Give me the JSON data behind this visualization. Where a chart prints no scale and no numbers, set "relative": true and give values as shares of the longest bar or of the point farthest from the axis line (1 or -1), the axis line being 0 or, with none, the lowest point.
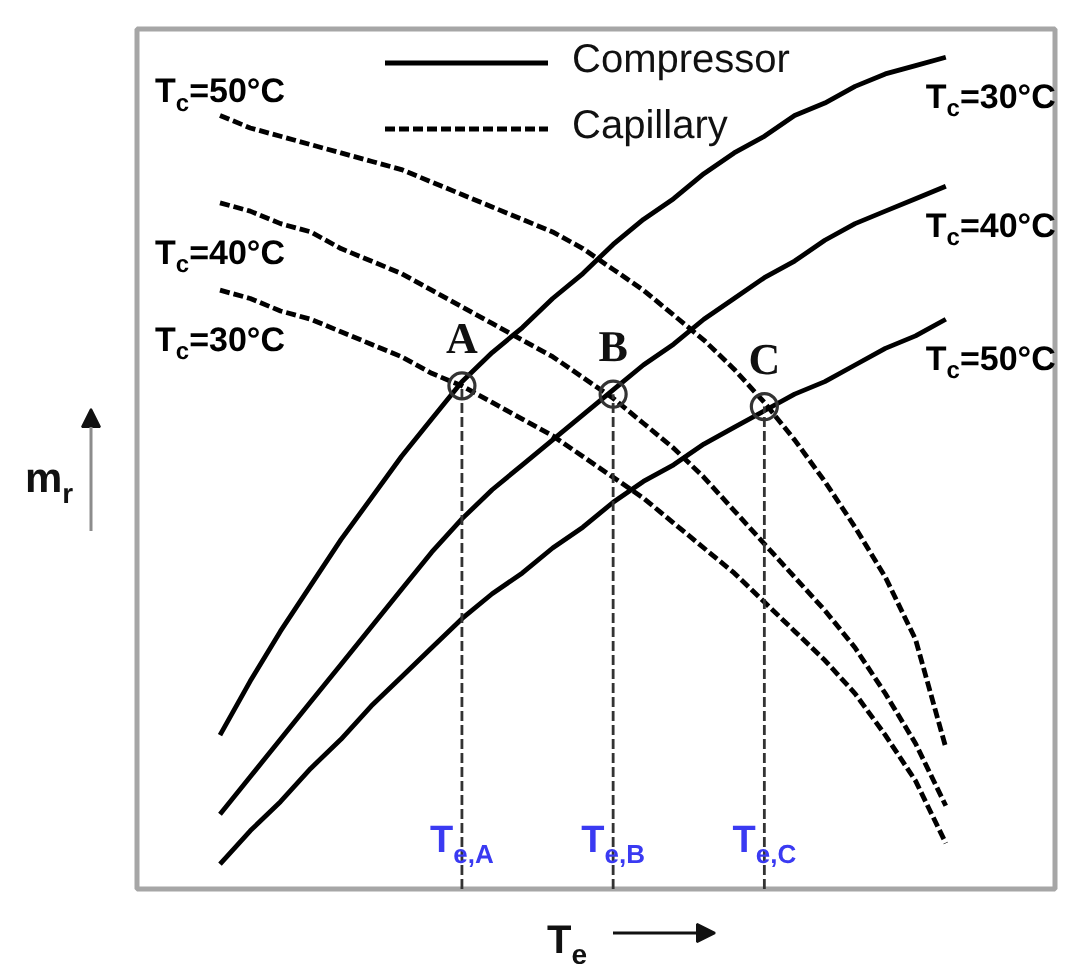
{
  "chart_data": {
    "type": "line",
    "relative": true,
    "xlabel": "T$_{e}$",
    "ylabel": "m$_{r}$",
    "legend": "top",
    "categories": [
      null,
      null,
      null,
      null,
      null,
      null,
      null,
      null,
      "T$_{e,A}$",
      null,
      null,
      null,
      null,
      "T$_{e,B}$",
      null,
      null,
      null,
      null,
      "T$_{e,C}$",
      null,
      null,
      null,
      null,
      null,
      null
    ],
    "series": [
      {
        "name": "T$_{c}$=30°C",
        "color": "#000000",
        "line_style": "solid",
        "values": [
          0.185,
          0.25,
          0.31,
          0.365,
          0.42,
          0.47,
          0.52,
          0.565,
          0.61,
          0.645,
          0.675,
          0.71,
          0.74,
          0.775,
          0.805,
          0.83,
          0.86,
          0.885,
          0.905,
          0.93,
          0.945,
          0.965,
          0.98,
          0.99,
          1.0
        ]
      },
      {
        "name": "T$_{c}$=40°C",
        "color": "#000000",
        "line_style": "solid",
        "values": [
          0.09,
          0.135,
          0.18,
          0.225,
          0.27,
          0.315,
          0.36,
          0.405,
          0.445,
          0.48,
          0.51,
          0.54,
          0.57,
          0.6,
          0.63,
          0.655,
          0.685,
          0.71,
          0.735,
          0.755,
          0.78,
          0.8,
          0.815,
          0.83,
          0.845
        ]
      },
      {
        "name": "T$_{c}$=50°C",
        "color": "#000000",
        "line_style": "solid",
        "values": [
          0.03,
          0.07,
          0.105,
          0.145,
          0.18,
          0.22,
          0.255,
          0.29,
          0.325,
          0.355,
          0.38,
          0.41,
          0.435,
          0.465,
          0.49,
          0.51,
          0.535,
          0.555,
          0.575,
          0.595,
          0.61,
          0.63,
          0.65,
          0.665,
          0.685
        ]
      },
      {
        "name": "T$_{c}$=50°C",
        "color": "#000000",
        "line_style": "dashed",
        "values": [
          0.93,
          0.915,
          0.905,
          0.895,
          0.885,
          0.875,
          0.865,
          0.85,
          0.835,
          0.82,
          0.805,
          0.79,
          0.77,
          0.745,
          0.72,
          0.69,
          0.66,
          0.625,
          0.585,
          0.54,
          0.49,
          0.435,
          0.375,
          0.3,
          0.17
        ]
      },
      {
        "name": "T$_{c}$=40°C",
        "color": "#000000",
        "line_style": "dashed",
        "values": [
          0.825,
          0.815,
          0.8,
          0.79,
          0.77,
          0.755,
          0.74,
          0.72,
          0.7,
          0.68,
          0.66,
          0.64,
          0.615,
          0.59,
          0.56,
          0.53,
          0.495,
          0.455,
          0.415,
          0.375,
          0.335,
          0.29,
          0.235,
          0.175,
          0.1
        ]
      },
      {
        "name": "T$_{c}$=30°C",
        "color": "#000000",
        "line_style": "dashed",
        "values": [
          0.72,
          0.71,
          0.695,
          0.685,
          0.67,
          0.655,
          0.64,
          0.62,
          0.605,
          0.585,
          0.565,
          0.545,
          0.52,
          0.495,
          0.47,
          0.44,
          0.41,
          0.38,
          0.345,
          0.31,
          0.275,
          0.235,
          0.185,
          0.13,
          0.055
        ]
      },
      {
        "type": "lollipop",
        "color": "#333333",
        "line_style": "dashed",
        "marker": "circle",
        "values": [
          null,
          null,
          null,
          null,
          null,
          null,
          null,
          null,
          0.605,
          null,
          null,
          null,
          null,
          0.595,
          null,
          null,
          null,
          null,
          0.58,
          null,
          null,
          null,
          null,
          null,
          null
        ]
      }
    ],
    "annotations": [
      "Compressor",
      "Capillary",
      {
        "text": "A",
        "x": "T$_{e,A}$",
        "y": 0.605
      },
      {
        "text": "B",
        "x": "T$_{e,B}$",
        "y": 0.595
      },
      {
        "text": "C",
        "x": "T$_{e,C}$",
        "y": 0.58
      }
    ]
  }
}
